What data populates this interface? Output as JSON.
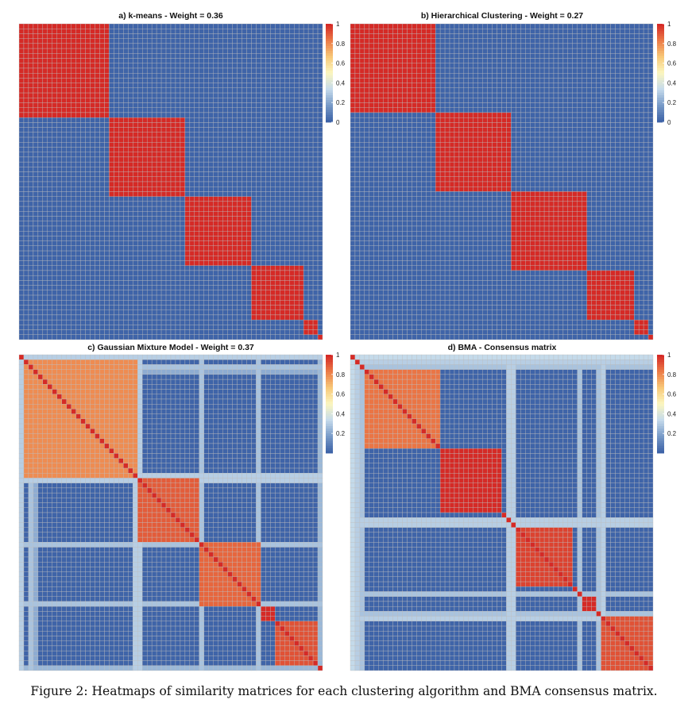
{
  "figure": {
    "caption": "Figure 2: Heatmaps of similarity matrices for each clustering algorithm and BMA consensus matrix."
  },
  "palette": {
    "stops": [
      "#3f64a8",
      "#7a9cc9",
      "#c6dbeb",
      "#fbf6bf",
      "#f8c979",
      "#ec7d48",
      "#d52a26"
    ],
    "grid_line": "#bdbdbd"
  },
  "chart_data": [
    {
      "type": "heatmap",
      "title": "a) k-means - Weight = 0.36",
      "n": 64,
      "colorbar_ticks": [
        "1",
        "0.8",
        "0.6",
        "0.4",
        "0.2",
        "0"
      ],
      "blocks": [
        {
          "start": 0,
          "size": 19,
          "value": 1.0
        },
        {
          "start": 19,
          "size": 16,
          "value": 1.0
        },
        {
          "start": 35,
          "size": 14,
          "value": 1.0
        },
        {
          "start": 49,
          "size": 11,
          "value": 1.0
        },
        {
          "start": 60,
          "size": 3,
          "value": 1.0
        }
      ],
      "background": 0.0
    },
    {
      "type": "heatmap",
      "title": "b) Hierarchical Clustering - Weight = 0.27",
      "n": 64,
      "colorbar_ticks": [
        "1",
        "0.8",
        "0.6",
        "0.4",
        "0.2",
        "0"
      ],
      "blocks": [
        {
          "start": 0,
          "size": 18,
          "value": 1.0
        },
        {
          "start": 18,
          "size": 16,
          "value": 1.0
        },
        {
          "start": 34,
          "size": 16,
          "value": 1.0
        },
        {
          "start": 50,
          "size": 10,
          "value": 1.0
        },
        {
          "start": 60,
          "size": 3,
          "value": 1.0
        }
      ],
      "background": 0.0
    },
    {
      "type": "heatmap",
      "title": "c) Gaussian Mixture Model - Weight = 0.37",
      "n": 64,
      "colorbar_ticks": [
        "1",
        "0.8",
        "0.6",
        "0.4",
        "0.2"
      ],
      "blocks": [
        {
          "start": 1,
          "size": 24,
          "value": 0.8
        },
        {
          "start": 25,
          "size": 13,
          "value": 0.9
        },
        {
          "start": 38,
          "size": 13,
          "value": 0.88
        },
        {
          "start": 51,
          "size": 3,
          "value": 1.0
        },
        {
          "start": 54,
          "size": 9,
          "value": 0.92
        }
      ],
      "loose_rows": [
        {
          "index": 0,
          "value": 0.5
        },
        {
          "index": 2,
          "value": 0.45
        },
        {
          "index": 3,
          "value": 0.35
        },
        {
          "index": 24,
          "value": 0.5
        },
        {
          "index": 25,
          "value": 0.5
        },
        {
          "index": 38,
          "value": 0.45
        },
        {
          "index": 50,
          "value": 0.45
        },
        {
          "index": 63,
          "value": 0.4
        }
      ],
      "background": 0.0
    },
    {
      "type": "heatmap",
      "title": "d) BMA - Consensus matrix",
      "n": 64,
      "colorbar_ticks": [
        "1",
        "0.8",
        "0.6",
        "0.4",
        "0.2"
      ],
      "blocks": [
        {
          "start": 3,
          "size": 16,
          "value": 0.85
        },
        {
          "start": 19,
          "size": 13,
          "value": 1.0
        },
        {
          "start": 35,
          "size": 12,
          "value": 0.95
        },
        {
          "start": 49,
          "size": 3,
          "value": 1.0
        },
        {
          "start": 53,
          "size": 11,
          "value": 0.92
        }
      ],
      "loose_rows": [
        {
          "index": 0,
          "value": 0.55
        },
        {
          "index": 1,
          "value": 0.5
        },
        {
          "index": 2,
          "value": 0.45
        },
        {
          "index": 33,
          "value": 0.5
        },
        {
          "index": 34,
          "value": 0.5
        },
        {
          "index": 48,
          "value": 0.45
        },
        {
          "index": 52,
          "value": 0.45
        },
        {
          "index": 53,
          "value": 0.5
        }
      ],
      "background": 0.0
    }
  ]
}
